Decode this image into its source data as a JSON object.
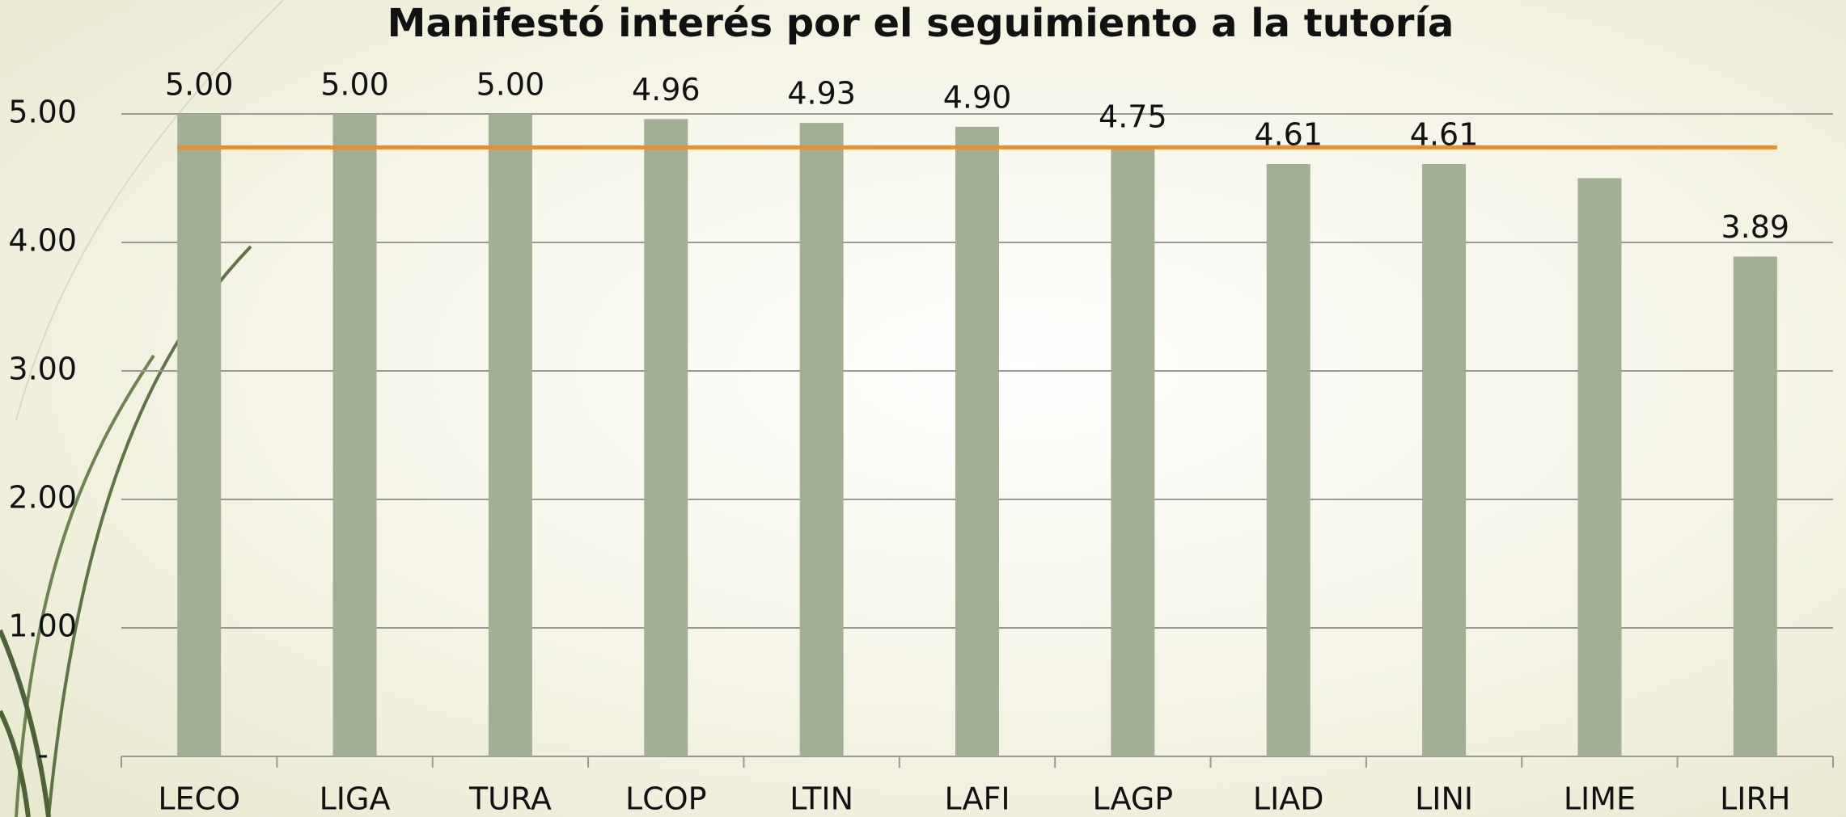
{
  "chart_data": {
    "type": "bar",
    "title": "Manifestó interés por el seguimiento a la tutoría",
    "categories": [
      "LECO",
      "LIGA",
      "TURA",
      "LCOP",
      "LTIN",
      "LAFI",
      "LAGP",
      "LIAD",
      "LINI",
      "LIME",
      "LIRH"
    ],
    "values": [
      5,
      5,
      5,
      4.96,
      4.93,
      4.9,
      4.75,
      4.61,
      4.61,
      4.5,
      3.89
    ],
    "value_labels": [
      "5.00",
      "5.00",
      "5.00",
      "4.96",
      "4.93",
      "4.90",
      "4.75",
      "4.61",
      "4.61",
      null,
      "3.89"
    ],
    "color": "#a3af92",
    "reference_line": {
      "value": 4.74,
      "color": "#e8902e"
    },
    "ylim": [
      0,
      5
    ],
    "yticks": [
      {
        "value": 0,
        "label": "-"
      },
      {
        "value": 1,
        "label": "1.00"
      },
      {
        "value": 2,
        "label": "2.00"
      },
      {
        "value": 3,
        "label": "3.00"
      },
      {
        "value": 4,
        "label": "4.00"
      },
      {
        "value": 5,
        "label": "5.00"
      }
    ],
    "grid": true
  }
}
